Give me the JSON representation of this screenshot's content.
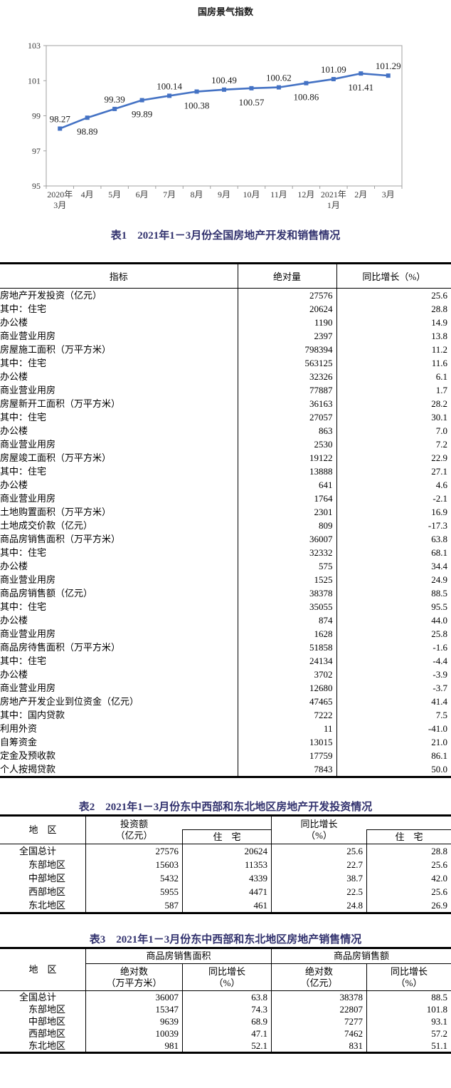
{
  "chart_data": {
    "type": "line",
    "title": "国房景气指数",
    "categories": [
      "2020年3月",
      "4月",
      "5月",
      "6月",
      "7月",
      "8月",
      "9月",
      "10月",
      "11月",
      "12月",
      "2021年1月",
      "2月",
      "3月"
    ],
    "x_labels": [
      [
        "2020年",
        "3月"
      ],
      "4月",
      "5月",
      "6月",
      "7月",
      "8月",
      "9月",
      "10月",
      "11月",
      "12月",
      [
        "2021年",
        "1月"
      ],
      "2月",
      "3月"
    ],
    "values": [
      98.27,
      98.89,
      99.39,
      99.89,
      100.14,
      100.38,
      100.49,
      100.57,
      100.62,
      100.86,
      101.09,
      101.41,
      101.29
    ],
    "label_positions": [
      "above",
      "below",
      "above",
      "below",
      "above",
      "below",
      "above",
      "below",
      "above",
      "below",
      "above",
      "below",
      "above"
    ],
    "ylim": [
      95,
      103
    ],
    "y_ticks": [
      95,
      97,
      99,
      101,
      103
    ],
    "xlabel": "",
    "ylabel": "",
    "grid": false,
    "legend": "none",
    "line_color": "#4472C4",
    "marker": "square",
    "axis_color": "#a0a0a0"
  },
  "table1": {
    "title": "表1　2021年1－3月份全国房地产开发和销售情况",
    "columns": [
      "指标",
      "绝对量",
      "同比增长（%）"
    ],
    "rows": [
      {
        "indicator": "房地产开发投资（亿元）",
        "indent": 0,
        "absolute": "27576",
        "growth": "25.6"
      },
      {
        "indicator": "其中：住宅",
        "indent": 1,
        "absolute": "20624",
        "growth": "28.8"
      },
      {
        "indicator": "办公楼",
        "indent": 2,
        "absolute": "1190",
        "growth": "14.9"
      },
      {
        "indicator": "商业营业用房",
        "indent": 2,
        "absolute": "2397",
        "growth": "13.8"
      },
      {
        "indicator": "房屋施工面积（万平方米）",
        "indent": 0,
        "absolute": "798394",
        "growth": "11.2"
      },
      {
        "indicator": "其中：住宅",
        "indent": 1,
        "absolute": "563125",
        "growth": "11.6"
      },
      {
        "indicator": "办公楼",
        "indent": 2,
        "absolute": "32326",
        "growth": "6.1"
      },
      {
        "indicator": "商业营业用房",
        "indent": 2,
        "absolute": "77887",
        "growth": "1.7"
      },
      {
        "indicator": "房屋新开工面积（万平方米）",
        "indent": 0,
        "absolute": "36163",
        "growth": "28.2"
      },
      {
        "indicator": "其中：住宅",
        "indent": 1,
        "absolute": "27057",
        "growth": "30.1"
      },
      {
        "indicator": "办公楼",
        "indent": 2,
        "absolute": "863",
        "growth": "7.0"
      },
      {
        "indicator": "商业营业用房",
        "indent": 2,
        "absolute": "2530",
        "growth": "7.2"
      },
      {
        "indicator": "房屋竣工面积（万平方米）",
        "indent": 0,
        "absolute": "19122",
        "growth": "22.9"
      },
      {
        "indicator": "其中：住宅",
        "indent": 1,
        "absolute": "13888",
        "growth": "27.1"
      },
      {
        "indicator": "办公楼",
        "indent": 2,
        "absolute": "641",
        "growth": "4.6"
      },
      {
        "indicator": "商业营业用房",
        "indent": 2,
        "absolute": "1764",
        "growth": "-2.1"
      },
      {
        "indicator": "土地购置面积（万平方米）",
        "indent": 0,
        "absolute": "2301",
        "growth": "16.9"
      },
      {
        "indicator": "土地成交价款（亿元）",
        "indent": 0,
        "absolute": "809",
        "growth": "-17.3"
      },
      {
        "indicator": "商品房销售面积（万平方米）",
        "indent": 0,
        "absolute": "36007",
        "growth": "63.8"
      },
      {
        "indicator": "其中：住宅",
        "indent": 1,
        "absolute": "32332",
        "growth": "68.1"
      },
      {
        "indicator": "办公楼",
        "indent": 2,
        "absolute": "575",
        "growth": "34.4"
      },
      {
        "indicator": "商业营业用房",
        "indent": 2,
        "absolute": "1525",
        "growth": "24.9"
      },
      {
        "indicator": "商品房销售额（亿元）",
        "indent": 0,
        "absolute": "38378",
        "growth": "88.5"
      },
      {
        "indicator": "其中：住宅",
        "indent": 1,
        "absolute": "35055",
        "growth": "95.5"
      },
      {
        "indicator": "办公楼",
        "indent": 2,
        "absolute": "874",
        "growth": "44.0"
      },
      {
        "indicator": "商业营业用房",
        "indent": 2,
        "absolute": "1628",
        "growth": "25.8"
      },
      {
        "indicator": "商品房待售面积（万平方米）",
        "indent": 0,
        "absolute": "51858",
        "growth": "-1.6"
      },
      {
        "indicator": "其中：住宅",
        "indent": 1,
        "absolute": "24134",
        "growth": "-4.4"
      },
      {
        "indicator": "办公楼",
        "indent": 2,
        "absolute": "3702",
        "growth": "-3.9"
      },
      {
        "indicator": "商业营业用房",
        "indent": 2,
        "absolute": "12680",
        "growth": "-3.7"
      },
      {
        "indicator": "房地产开发企业到位资金（亿元）",
        "indent": 0,
        "absolute": "47465",
        "growth": "41.4"
      },
      {
        "indicator": "其中：国内贷款",
        "indent": 1,
        "absolute": "7222",
        "growth": "7.5"
      },
      {
        "indicator": "利用外资",
        "indent": 2,
        "absolute": "11",
        "growth": "-41.0"
      },
      {
        "indicator": "自筹资金",
        "indent": 2,
        "absolute": "13015",
        "growth": "21.0"
      },
      {
        "indicator": "定金及预收款",
        "indent": 2,
        "absolute": "17759",
        "growth": "86.1"
      },
      {
        "indicator": "个人按揭贷款",
        "indent": 2,
        "absolute": "7843",
        "growth": "50.0"
      }
    ]
  },
  "table2": {
    "title": "表2　2021年1－3月份东中西部和东北地区房地产开发投资情况",
    "header": {
      "region": "地　区",
      "investment_l1": "投资额",
      "investment_l2": "（亿元）",
      "residential1": "住　宅",
      "growth_l1": "同比增长",
      "growth_l2": "（%）",
      "residential2": "住　宅"
    },
    "rows": [
      {
        "region": "全国总计",
        "indent": 0,
        "investment": "27576",
        "res_investment": "20624",
        "growth": "25.6",
        "res_growth": "28.8"
      },
      {
        "region": "东部地区",
        "indent": 1,
        "investment": "15603",
        "res_investment": "11353",
        "growth": "22.7",
        "res_growth": "25.6"
      },
      {
        "region": "中部地区",
        "indent": 1,
        "investment": "5432",
        "res_investment": "4339",
        "growth": "38.7",
        "res_growth": "42.0"
      },
      {
        "region": "西部地区",
        "indent": 1,
        "investment": "5955",
        "res_investment": "4471",
        "growth": "22.5",
        "res_growth": "25.6"
      },
      {
        "region": "东北地区",
        "indent": 1,
        "investment": "587",
        "res_investment": "461",
        "growth": "24.8",
        "res_growth": "26.9"
      }
    ]
  },
  "table3": {
    "title": "表3　2021年1－3月份东中西部和东北地区房地产销售情况",
    "header": {
      "region": "地　区",
      "group_area": "商品房销售面积",
      "group_amount": "商品房销售额",
      "abs_area_l1": "绝对数",
      "abs_area_l2": "（万平方米）",
      "growth1_l1": "同比增长",
      "growth1_l2": "（%）",
      "abs_amount_l1": "绝对数",
      "abs_amount_l2": "（亿元）",
      "growth2_l1": "同比增长",
      "growth2_l2": "（%）"
    },
    "rows": [
      {
        "region": "全国总计",
        "indent": 0,
        "area": "36007",
        "area_growth": "63.8",
        "amount": "38378",
        "amount_growth": "88.5"
      },
      {
        "region": "东部地区",
        "indent": 1,
        "area": "15347",
        "area_growth": "74.3",
        "amount": "22807",
        "amount_growth": "101.8"
      },
      {
        "region": "中部地区",
        "indent": 1,
        "area": "9639",
        "area_growth": "68.9",
        "amount": "7277",
        "amount_growth": "93.1"
      },
      {
        "region": "西部地区",
        "indent": 1,
        "area": "10039",
        "area_growth": "47.1",
        "amount": "7462",
        "amount_growth": "57.2"
      },
      {
        "region": "东北地区",
        "indent": 1,
        "area": "981",
        "area_growth": "52.1",
        "amount": "831",
        "amount_growth": "51.1"
      }
    ]
  }
}
